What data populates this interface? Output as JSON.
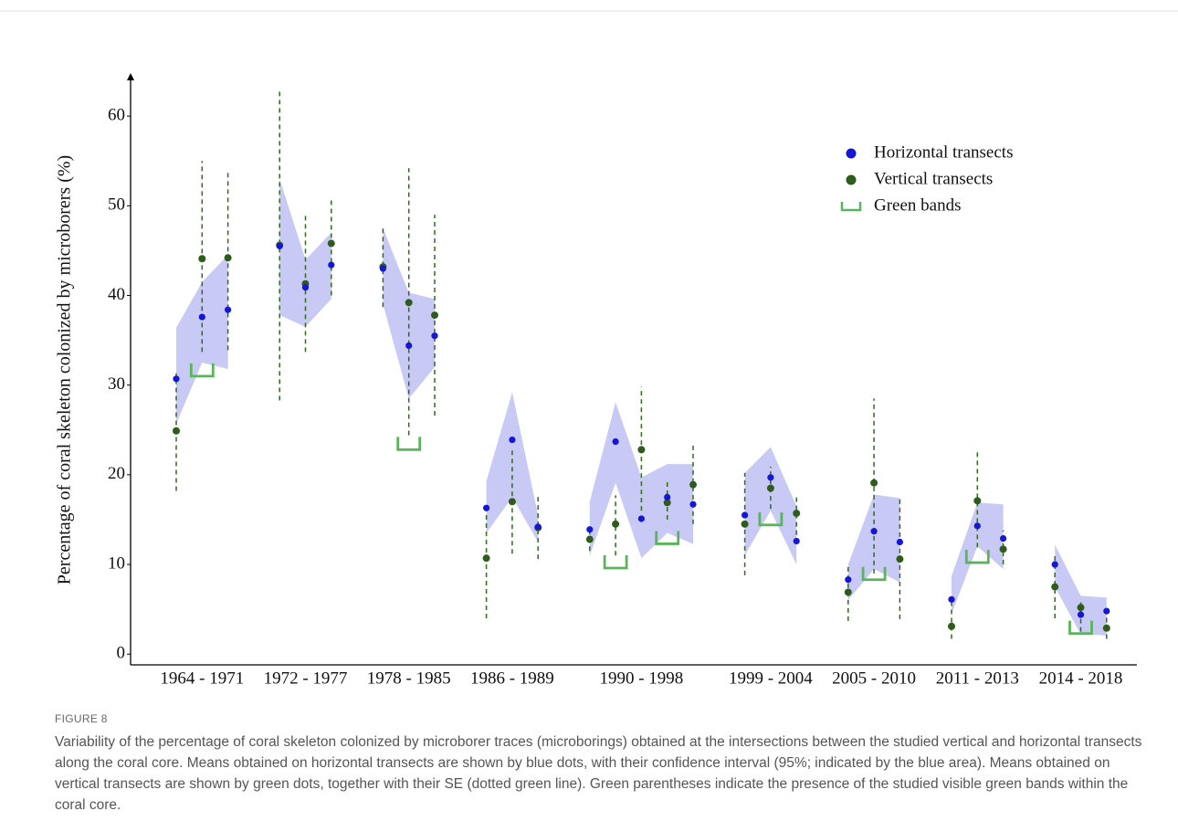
{
  "chart_data": {
    "type": "scatter",
    "y_label": "Percentage of  coral skeleton colonized by microborers (%)",
    "ylim": [
      -1.2,
      64.8
    ],
    "yticks": [
      0,
      10,
      20,
      30,
      40,
      50,
      60
    ],
    "series": [
      {
        "name": "Horizontal transects",
        "color": "#1616d8"
      },
      {
        "name": "Vertical transects",
        "color": "#2f5c1c"
      },
      {
        "name": "Green bands",
        "color": "#5cb35c"
      }
    ],
    "ci_color": "#c9c9f6",
    "se_color": "#2e6b1e",
    "groups": [
      {
        "label": "1964 - 1971",
        "horizontal": [
          30.7,
          37.6,
          38.4
        ],
        "horizontal_ci_low": [
          25.7,
          32.5,
          31.8
        ],
        "horizontal_ci_high": [
          36.4,
          41.5,
          44.5
        ],
        "vertical": [
          24.9,
          44.1,
          44.2
        ],
        "vertical_se_low": [
          18.2,
          33.7,
          33.9
        ],
        "vertical_se_high": [
          31.3,
          55,
          54
        ],
        "green_bands": [
          null,
          31,
          null
        ]
      },
      {
        "label": "1972 - 1977",
        "horizontal": [
          45.5,
          40.9,
          43.4
        ],
        "horizontal_ci_low": [
          37.8,
          36.5,
          39.6
        ],
        "horizontal_ci_high": [
          53,
          44,
          47
        ],
        "vertical": [
          45.6,
          41.3,
          45.8
        ],
        "vertical_se_low": [
          28.3,
          33.7,
          40
        ],
        "vertical_se_high": [
          62.8,
          48.9,
          51
        ],
        "green_bands": [
          null,
          null,
          null
        ]
      },
      {
        "label": "1978 - 1985",
        "horizontal": [
          43,
          34.4,
          35.5
        ],
        "horizontal_ci_low": [
          39,
          28.5,
          32
        ],
        "horizontal_ci_high": [
          47.5,
          40.3,
          39.6
        ],
        "vertical": [
          43.2,
          39.2,
          37.8
        ],
        "vertical_se_low": [
          38.7,
          24.4,
          26.6
        ],
        "vertical_se_high": [
          47.7,
          54.2,
          49
        ],
        "green_bands": [
          null,
          22.8,
          null
        ]
      },
      {
        "label": "1986 - 1989",
        "horizontal": [
          16.3,
          23.9,
          14.2
        ],
        "horizontal_ci_low": [
          13.5,
          17.5,
          12.5
        ],
        "horizontal_ci_high": [
          19.3,
          29.2,
          15.5
        ],
        "vertical": [
          10.7,
          17,
          14.1
        ],
        "vertical_se_low": [
          4,
          11.2,
          10.6
        ],
        "vertical_se_high": [
          16.5,
          23,
          17.7
        ],
        "green_bands": [
          null,
          null,
          null
        ]
      },
      {
        "label": "1990 - 1998",
        "horizontal": [
          13.9,
          23.7,
          15.1,
          17.5,
          16.7
        ],
        "horizontal_ci_low": [
          11,
          19.1,
          10.7,
          13.5,
          12.3
        ],
        "horizontal_ci_high": [
          17,
          28.1,
          19.7,
          21.2,
          21.2
        ],
        "vertical": [
          12.8,
          14.5,
          22.8,
          16.9,
          18.9
        ],
        "vertical_se_low": [
          11.5,
          11,
          16,
          15,
          14.5
        ],
        "vertical_se_high": [
          14,
          17.7,
          29.8,
          19.4,
          23.3
        ],
        "green_bands": [
          null,
          9.6,
          null,
          12.3,
          null
        ]
      },
      {
        "label": "1999 - 2004",
        "horizontal": [
          15.5,
          19.7,
          12.6
        ],
        "horizontal_ci_low": [
          11,
          16,
          10
        ],
        "horizontal_ci_high": [
          20.2,
          23.1,
          16.5
        ],
        "vertical": [
          14.5,
          18.5,
          15.7
        ],
        "vertical_se_low": [
          8.8,
          16.2,
          13.3
        ],
        "vertical_se_high": [
          20.2,
          20.9,
          17.5
        ],
        "green_bands": [
          null,
          14.4,
          null
        ]
      },
      {
        "label": "2005 - 2010",
        "horizontal": [
          8.3,
          13.7,
          12.5
        ],
        "horizontal_ci_low": [
          6,
          9.5,
          8
        ],
        "horizontal_ci_high": [
          10,
          17.8,
          17.4
        ],
        "vertical": [
          6.9,
          19.1,
          10.6
        ],
        "vertical_se_low": [
          3.7,
          9,
          3.9
        ],
        "vertical_se_high": [
          10,
          28.5,
          17.3
        ],
        "green_bands": [
          null,
          8.3,
          null
        ]
      },
      {
        "label": "2011 - 2013",
        "horizontal": [
          6.1,
          14.3,
          12.9
        ],
        "horizontal_ci_low": [
          4.5,
          12,
          9.5
        ],
        "horizontal_ci_high": [
          8.7,
          16.9,
          16.7
        ],
        "vertical": [
          3.1,
          17.1,
          11.7
        ],
        "vertical_se_low": [
          1.7,
          11.9,
          10
        ],
        "vertical_se_high": [
          6,
          22.9,
          13.8
        ],
        "green_bands": [
          null,
          10.2,
          null
        ]
      },
      {
        "label": "2014 - 2018",
        "horizontal": [
          10,
          4.4,
          4.8
        ],
        "horizontal_ci_low": [
          7.5,
          2.2,
          2.1
        ],
        "horizontal_ci_high": [
          12.2,
          6.5,
          6.3
        ],
        "vertical": [
          7.5,
          5.2,
          2.9
        ],
        "vertical_se_low": [
          4,
          2.5,
          1.7
        ],
        "vertical_se_high": [
          11,
          6,
          4.5
        ],
        "green_bands": [
          null,
          2.3,
          null
        ]
      }
    ]
  },
  "figure_label": "FIGURE 8",
  "caption": "Variability of the percentage of coral skeleton colonized by microborer traces (microborings) obtained at the intersections between the studied vertical and horizontal transects along the coral core. Means obtained on horizontal transects are shown by blue dots, with their confidence interval (95%; indicated by the blue area). Means obtained on vertical transects are shown by green dots, together with their SE (dotted green line). Green parentheses indicate the presence of the studied visible green bands within the coral core."
}
